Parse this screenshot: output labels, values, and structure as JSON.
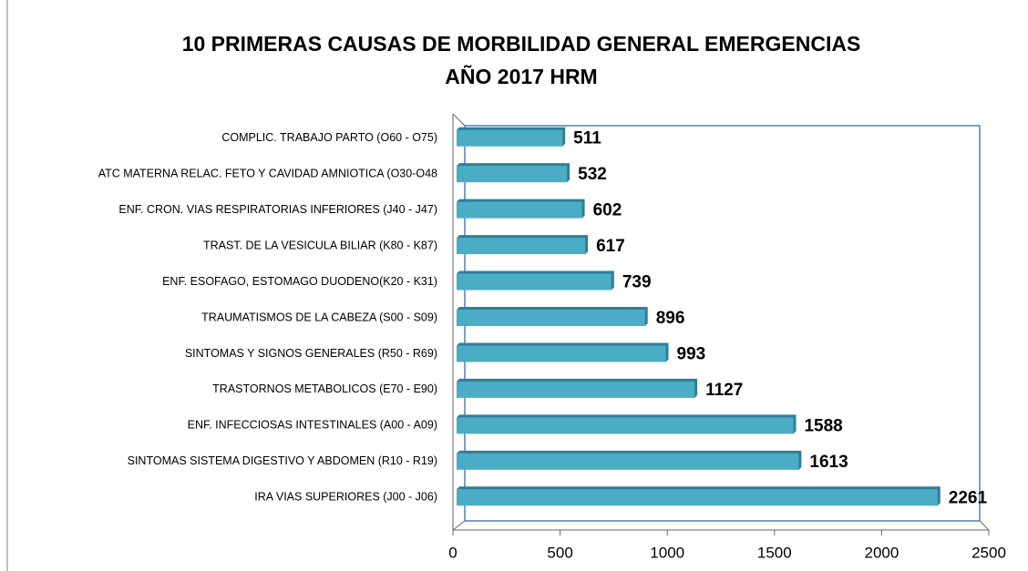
{
  "chart_data": {
    "type": "bar",
    "orientation": "horizontal",
    "title": [
      "10 PRIMERAS CAUSAS DE MORBILIDAD GENERAL EMERGENCIAS",
      "AÑO 2017 HRM"
    ],
    "categories": [
      "COMPLIC. TRABAJO PARTO (O60 - O75)",
      "ATC MATERNA RELAC. FETO Y CAVIDAD AMNIOTICA (O30-O48",
      "ENF. CRON. VIAS RESPIRATORIAS INFERIORES (J40 - J47)",
      "TRAST. DE LA VESICULA BILIAR (K80 - K87)",
      "ENF. ESOFAGO, ESTOMAGO DUODENO(K20 - K31)",
      "TRAUMATISMOS DE LA CABEZA (S00 - S09)",
      "SINTOMAS Y SIGNOS GENERALES (R50 - R69)",
      "TRASTORNOS METABOLICOS (E70 - E90)",
      "ENF. INFECCIOSAS INTESTINALES (A00 - A09)",
      "SINTOMAS  SISTEMA DIGESTIVO Y ABDOMEN (R10 - R19)",
      "IRA VIAS  SUPERIORES (J00 - J06)"
    ],
    "values": [
      511,
      532,
      602,
      617,
      739,
      896,
      993,
      1127,
      1588,
      1613,
      2261
    ],
    "color": "#4bacc6",
    "xlim": [
      0,
      2500
    ],
    "xticks": [
      0,
      500,
      1000,
      1500,
      2000,
      2500
    ]
  }
}
